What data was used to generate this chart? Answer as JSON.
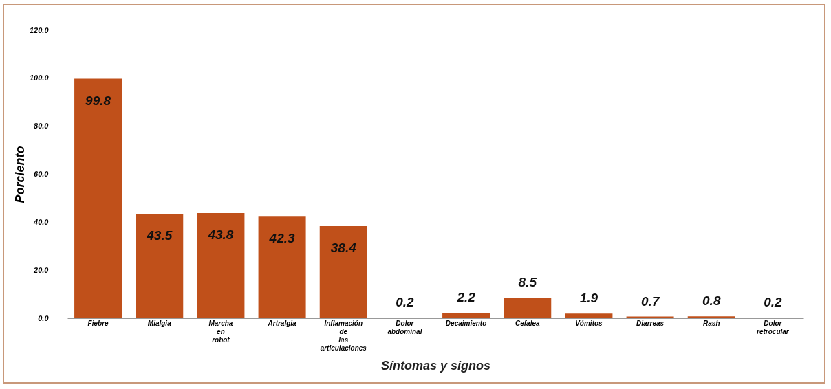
{
  "chart_data": {
    "type": "bar",
    "xlabel": "Síntomas y signos",
    "ylabel": "Porciento",
    "categories": [
      "Fiebre",
      "Mialgia",
      "Marcha en robot",
      "Artralgia",
      "Inflamación de las articulaciones",
      "Dolor abdominal",
      "Decaimiento",
      "Cefalea",
      "Vómitos",
      "Diarreas",
      "Rash",
      "Dolor retrocular"
    ],
    "values": [
      99.8,
      43.5,
      43.8,
      42.3,
      38.4,
      0.2,
      2.2,
      8.5,
      1.9,
      0.7,
      0.8,
      0.2
    ],
    "color": "#c0501a",
    "data_labels": true,
    "grid": false,
    "ylim": [
      0,
      120
    ],
    "yticks": [
      {
        "value": 0,
        "label": "0.0"
      },
      {
        "value": 20,
        "label": "20.0"
      },
      {
        "value": 40,
        "label": "40.0"
      },
      {
        "value": 60,
        "label": "60.0"
      },
      {
        "value": 80,
        "label": "80.0"
      },
      {
        "value": 100,
        "label": "100.0"
      },
      {
        "value": 120,
        "label": "120.0"
      }
    ]
  }
}
